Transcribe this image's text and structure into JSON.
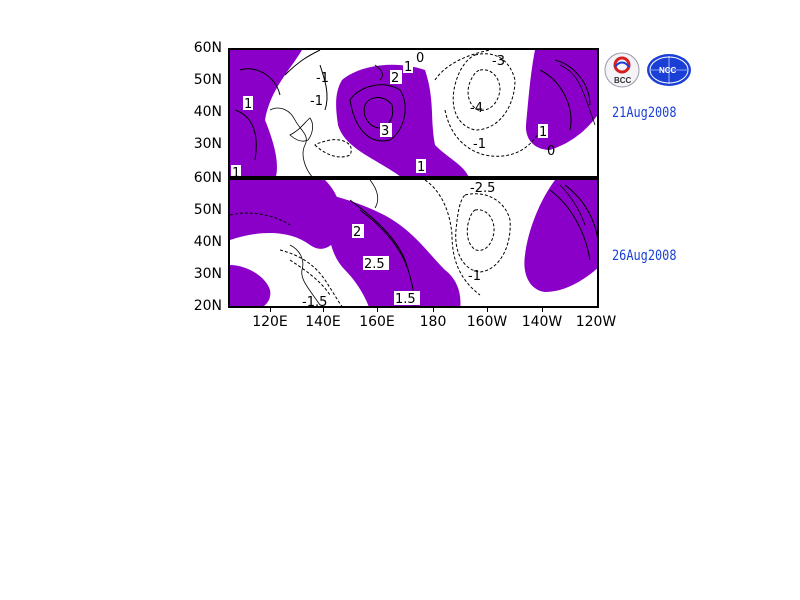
{
  "panels": [
    {
      "date": "21Aug2008",
      "lat_labels": [
        "60N",
        "50N",
        "40N",
        "30N"
      ],
      "contour_labels": [
        "1",
        "2",
        "1",
        "-1",
        "-1",
        "0",
        "-3",
        "-4",
        "-1",
        "1",
        "0",
        "3",
        "1",
        "1"
      ]
    },
    {
      "date": "26Aug2008",
      "lat_labels": [
        "60N",
        "50N",
        "40N",
        "30N",
        "20N"
      ],
      "contour_labels": [
        "-2.5",
        "2",
        "2.5",
        "-1.5",
        "1.5",
        "-1"
      ]
    }
  ],
  "lon_labels": [
    "120E",
    "140E",
    "160E",
    "180",
    "160W",
    "140W",
    "120W"
  ],
  "logos": {
    "left": "BCC",
    "right": "NCC"
  },
  "colors": {
    "positive_fill": "#8b00c8",
    "date_text": "#1a3fd6",
    "contour_line": "#000000"
  }
}
